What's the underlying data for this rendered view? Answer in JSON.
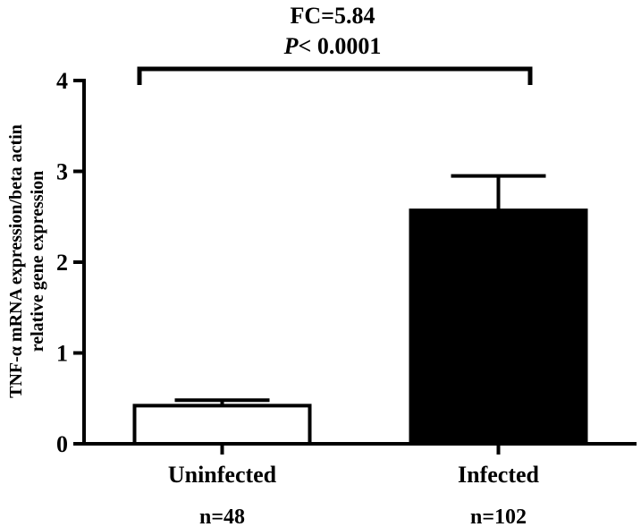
{
  "chart_data": {
    "type": "bar",
    "categories": [
      "Uninfected",
      "Infected"
    ],
    "sample_sizes": [
      "n=48",
      "n=102"
    ],
    "values": [
      0.42,
      2.57
    ],
    "error_upper": [
      0.48,
      2.95
    ],
    "bar_fills": [
      "#ffffff",
      "#000000"
    ],
    "bar_stroke": "#000000",
    "ylabel_line1": "TNF-α mRNA expression/beta actin",
    "ylabel_line2": "relative gene expression",
    "xlabel": "",
    "ylim": [
      0,
      4
    ],
    "yticks": [
      0,
      1,
      2,
      3,
      4
    ],
    "grid": false,
    "annotation": {
      "fc": "FC=5.84",
      "p_letter": "P",
      "p_rest": "< 0.0001"
    }
  }
}
